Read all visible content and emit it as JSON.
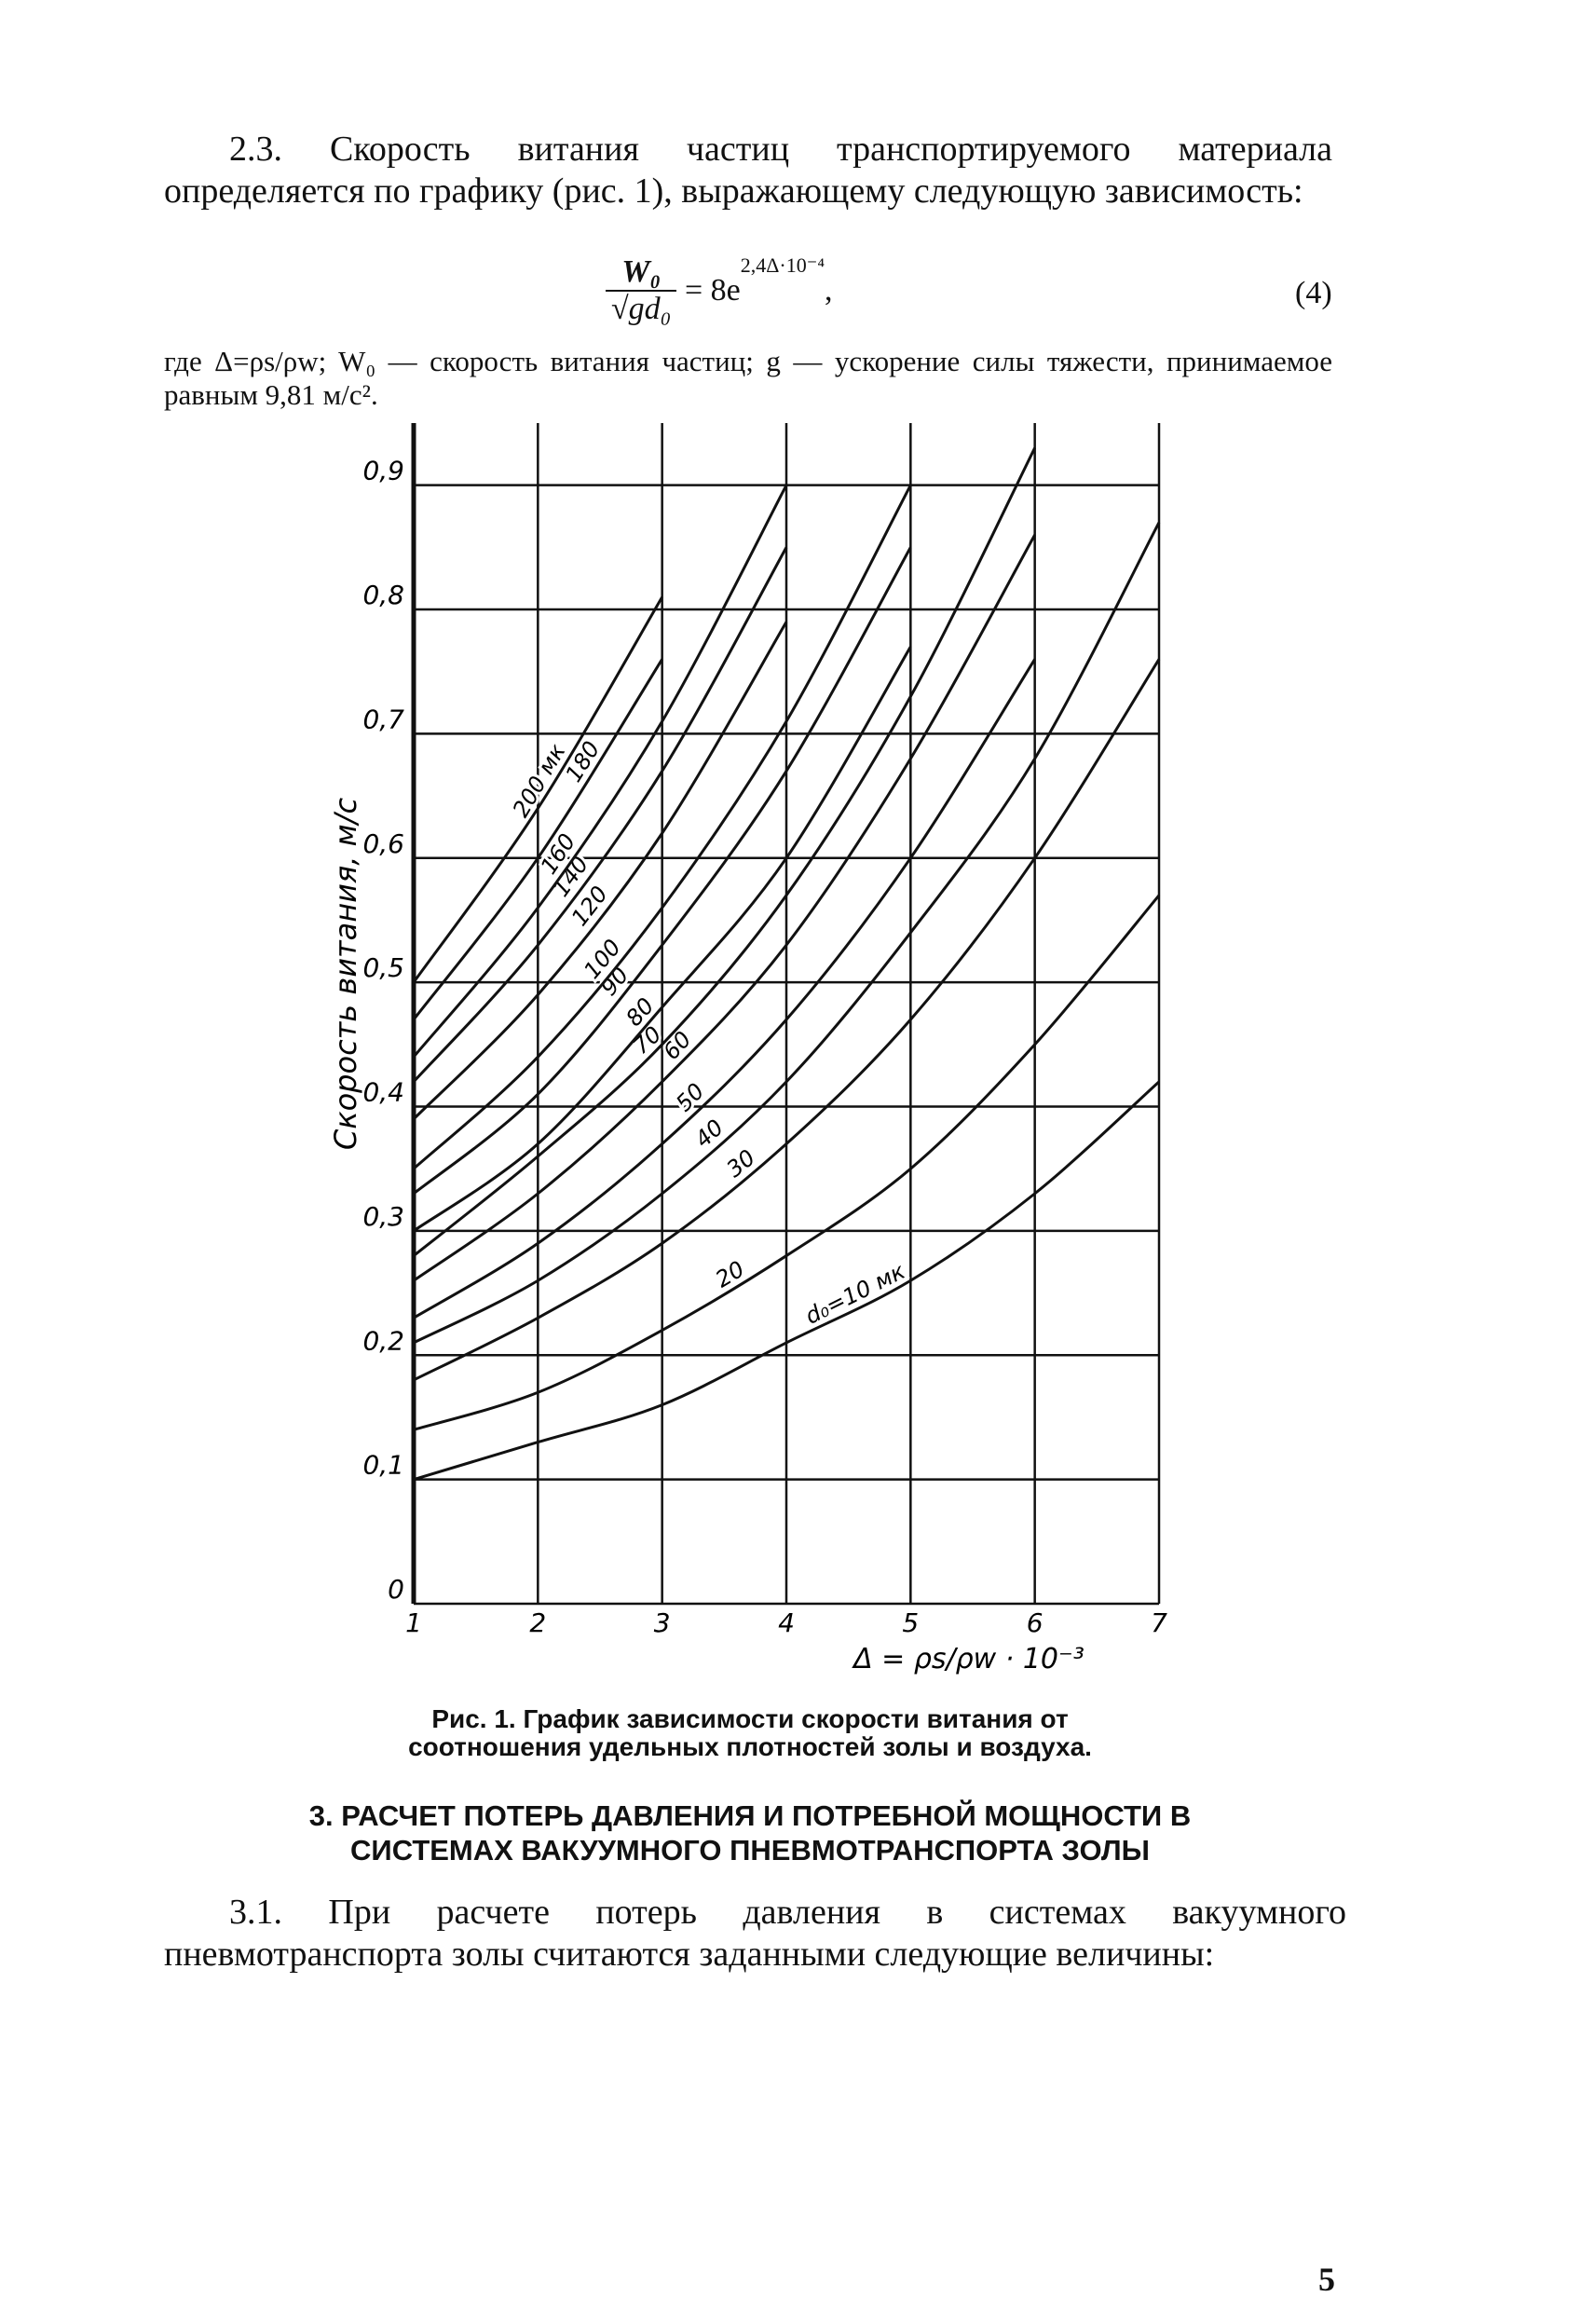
{
  "paragraph_2_3": "2.3. Скорость витания частиц транспортируемого материала определяется по графику (рис. 1), выражающему следующую зависимость:",
  "formula": {
    "numerator": "W₀",
    "denominator": "√gd₀",
    "rhs": "= 8e",
    "exponent": "2,4Δ·10⁻⁴",
    "tail": ",",
    "number": "(4)"
  },
  "where_text": "где Δ=ρs/ρw; W₀ — скорость витания частиц; g — ускорение силы тяжести, принимаемое равным 9,81 м/с².",
  "chart_data": {
    "type": "line",
    "x_label": "Δ = ρs/ρw · 10⁻³",
    "y_label": "Скорость витания, м/с",
    "x": [
      1,
      2,
      3,
      4,
      5,
      6,
      7
    ],
    "xlim": [
      1,
      7
    ],
    "xticks": [
      1,
      2,
      3,
      4,
      5,
      6,
      7
    ],
    "ylim": [
      0,
      0.95
    ],
    "yticks": [
      0,
      {
        "value": 0.1,
        "label": "0,1"
      },
      {
        "value": 0.2,
        "label": "0,2"
      },
      {
        "value": 0.3,
        "label": "0,3"
      },
      {
        "value": 0.4,
        "label": "0,4"
      },
      {
        "value": 0.5,
        "label": "0,5"
      },
      {
        "value": 0.6,
        "label": "0,6"
      },
      {
        "value": 0.7,
        "label": "0,7"
      },
      {
        "value": 0.8,
        "label": "0,8"
      },
      {
        "value": 0.9,
        "label": "0,9"
      }
    ],
    "grid": true,
    "series": [
      {
        "name": "d₀=10 мк",
        "color": "#111",
        "values": [
          0.1,
          0.13,
          0.16,
          0.21,
          0.26,
          0.33,
          0.42
        ]
      },
      {
        "name": "20",
        "color": "#111",
        "values": [
          0.14,
          0.17,
          0.22,
          0.28,
          0.35,
          0.45,
          0.57
        ]
      },
      {
        "name": "30",
        "color": "#111",
        "values": [
          0.18,
          0.23,
          0.29,
          0.37,
          0.47,
          0.6,
          0.76
        ]
      },
      {
        "name": "40",
        "color": "#111",
        "values": [
          0.21,
          0.26,
          0.33,
          0.42,
          0.54,
          0.68,
          0.87
        ]
      },
      {
        "name": "50",
        "color": "#111",
        "values": [
          0.23,
          0.29,
          0.37,
          0.47,
          0.6,
          0.76,
          null
        ]
      },
      {
        "name": "60",
        "color": "#111",
        "values": [
          0.26,
          0.33,
          0.42,
          0.53,
          0.68,
          0.86,
          null
        ]
      },
      {
        "name": "70",
        "color": "#111",
        "values": [
          0.28,
          0.36,
          0.45,
          0.57,
          0.73,
          0.93,
          null
        ]
      },
      {
        "name": "80",
        "color": "#111",
        "values": [
          0.3,
          0.37,
          0.48,
          0.6,
          0.77,
          null,
          null
        ]
      },
      {
        "name": "90",
        "color": "#111",
        "values": [
          0.33,
          0.41,
          0.53,
          0.67,
          0.85,
          null,
          null
        ]
      },
      {
        "name": "100",
        "color": "#111",
        "values": [
          0.35,
          0.44,
          0.56,
          0.71,
          0.9,
          null,
          null
        ]
      },
      {
        "name": "120",
        "color": "#111",
        "values": [
          0.39,
          0.49,
          0.62,
          0.79,
          null,
          null,
          null
        ]
      },
      {
        "name": "140",
        "color": "#111",
        "values": [
          0.42,
          0.53,
          0.67,
          0.85,
          null,
          null,
          null
        ]
      },
      {
        "name": "160",
        "color": "#111",
        "values": [
          0.44,
          0.56,
          0.71,
          0.9,
          null,
          null,
          null
        ]
      },
      {
        "name": "180",
        "color": "#111",
        "values": [
          0.47,
          0.6,
          0.76,
          null,
          null,
          null,
          null
        ]
      },
      {
        "name": "200 мк",
        "color": "#111",
        "values": [
          0.5,
          0.64,
          0.81,
          null,
          null,
          null,
          null
        ]
      }
    ]
  },
  "caption": "Рис. 1. График зависимости скорости витания от соотношения удельных плотностей золы и воздуха.",
  "section_heading": "3. РАСЧЕТ ПОТЕРЬ ДАВЛЕНИЯ И ПОТРЕБНОЙ МОЩНОСТИ В СИСТЕМАХ ВАКУУМНОГО ПНЕВМОТРАНСПОРТА ЗОЛЫ",
  "paragraph_3_1": "3.1. При расчете потерь давления в системах вакуумного пневмотранспорта золы считаются заданными следующие величины:",
  "page_number": "5"
}
